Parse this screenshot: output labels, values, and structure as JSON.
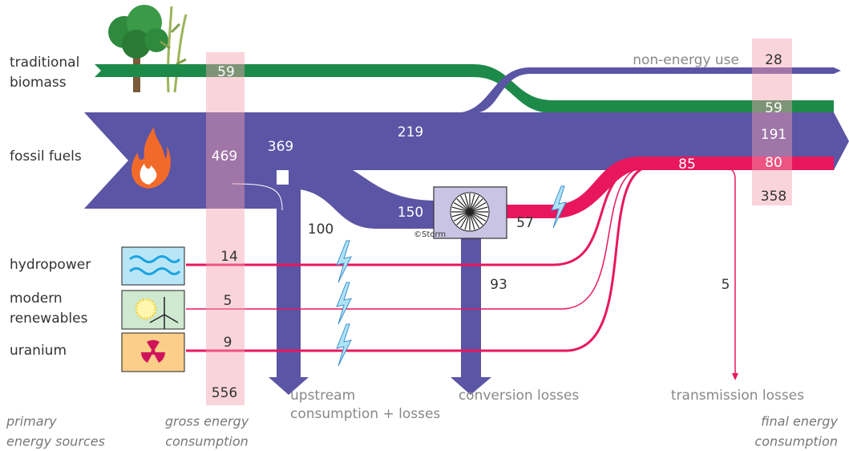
{
  "sources": [
    {
      "label": [
        "traditional",
        "biomass"
      ],
      "gross": "59"
    },
    {
      "label": [
        "fossil fuels"
      ],
      "gross": "469"
    },
    {
      "label": [
        "hydropower"
      ],
      "gross": "14"
    },
    {
      "label": [
        "modern",
        "renewables"
      ],
      "gross": "5"
    },
    {
      "label": [
        "uranium"
      ],
      "gross": "9"
    }
  ],
  "flows": {
    "fossil_direct": "369",
    "fossil_to_final": "219",
    "to_power_plant": "150",
    "upstream": "100",
    "conversion": "93",
    "power_output": "57",
    "electricity": "85",
    "transmission": "5"
  },
  "final": {
    "non_energy": "28",
    "biomass": "59",
    "fossil": "191",
    "electricity": "80",
    "total": "358"
  },
  "gross_total": "556",
  "sinks": {
    "non_energy": "non-energy use",
    "upstream": [
      "upstream",
      "consumption + losses"
    ],
    "conversion": "conversion losses",
    "transmission": "transmission losses"
  },
  "columns": {
    "primary": [
      "primary",
      "energy sources"
    ],
    "gross": [
      "gross energy",
      "consumption"
    ],
    "final": [
      "final energy",
      "consumption"
    ]
  },
  "credit": "©Storm"
}
